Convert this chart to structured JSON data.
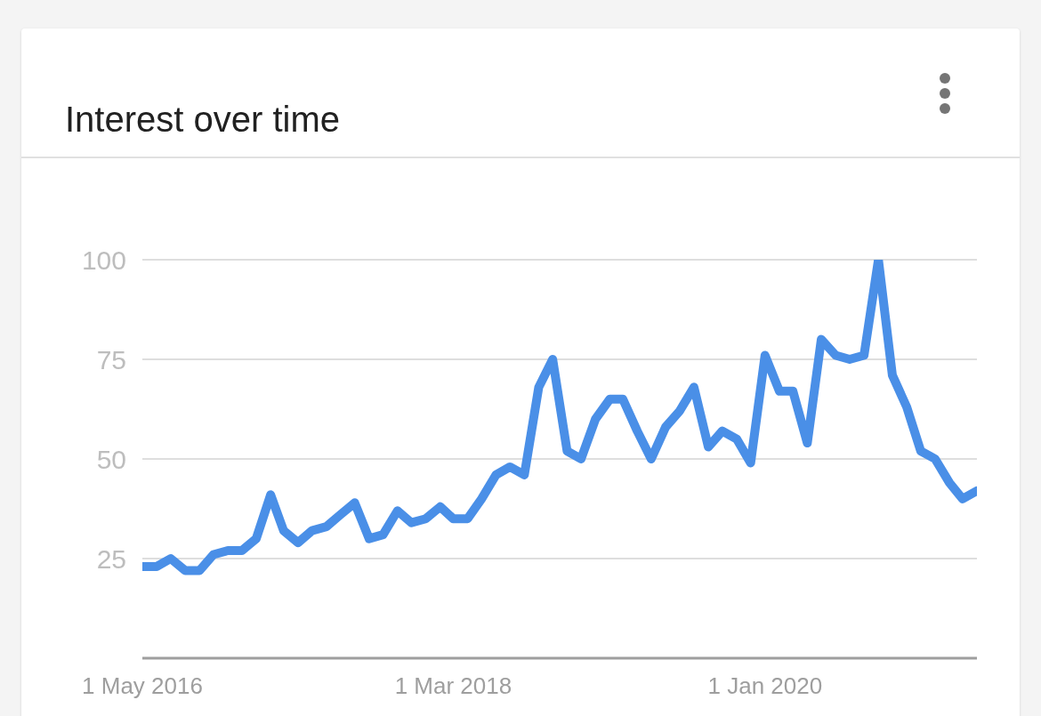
{
  "chart_data": {
    "type": "line",
    "title": "Interest over time",
    "x": [
      "2016-05",
      "2016-06",
      "2016-07",
      "2016-08",
      "2016-09",
      "2016-10",
      "2016-11",
      "2016-12",
      "2017-01",
      "2017-02",
      "2017-03",
      "2017-04",
      "2017-05",
      "2017-06",
      "2017-07",
      "2017-08",
      "2017-09",
      "2017-10",
      "2017-11",
      "2017-12",
      "2018-01",
      "2018-02",
      "2018-03",
      "2018-04",
      "2018-05",
      "2018-06",
      "2018-07",
      "2018-08",
      "2018-09",
      "2018-10",
      "2018-11",
      "2018-12",
      "2019-01",
      "2019-02",
      "2019-03",
      "2019-04",
      "2019-05",
      "2019-06",
      "2019-07",
      "2019-08",
      "2019-09",
      "2019-10",
      "2019-11",
      "2019-12",
      "2020-01",
      "2020-02",
      "2020-03",
      "2020-04",
      "2020-05",
      "2020-06",
      "2020-07",
      "2020-08",
      "2020-09",
      "2020-10",
      "2020-11",
      "2020-12",
      "2021-01",
      "2021-02",
      "2021-03",
      "2021-04"
    ],
    "series": [
      {
        "color": "#4a8fe7",
        "values": [
          23,
          23,
          25,
          22,
          22,
          26,
          27,
          27,
          30,
          41,
          32,
          29,
          32,
          33,
          36,
          39,
          30,
          31,
          37,
          34,
          35,
          38,
          35,
          35,
          40,
          46,
          48,
          46,
          68,
          75,
          52,
          50,
          60,
          65,
          65,
          57,
          50,
          58,
          62,
          68,
          53,
          57,
          55,
          49,
          76,
          67,
          67,
          54,
          80,
          76,
          75,
          76,
          100,
          71,
          63,
          52,
          50,
          44,
          40,
          42
        ]
      }
    ],
    "xlim": [
      "2016-05",
      "2021-04"
    ],
    "xticks": [
      {
        "value": "2016-05",
        "label": "1 May 2016"
      },
      {
        "value": "2018-03",
        "label": "1 Mar 2018"
      },
      {
        "value": "2020-01",
        "label": "1 Jan 2020"
      }
    ],
    "ylim": [
      0,
      100
    ],
    "yticks": [
      25,
      50,
      75,
      100
    ],
    "grid": "y",
    "legend": false,
    "marker": "none",
    "line_style": "solid"
  }
}
